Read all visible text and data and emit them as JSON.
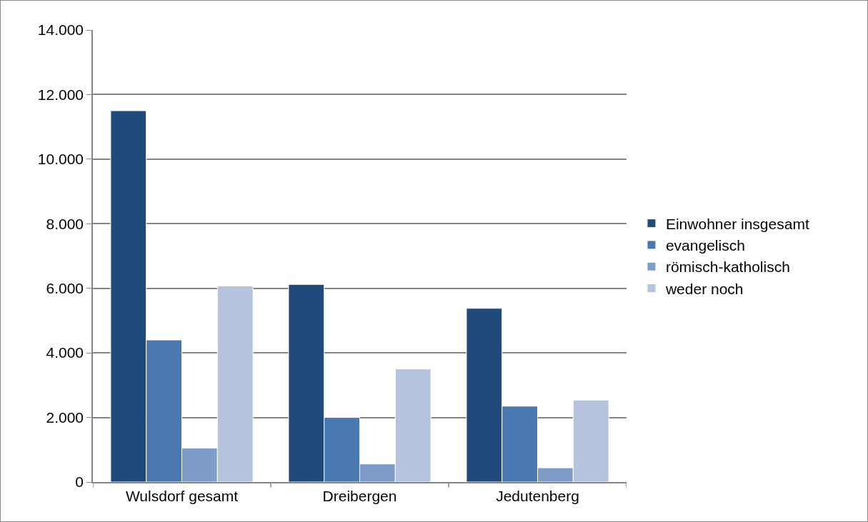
{
  "chart_data": {
    "type": "bar",
    "categories": [
      "Wulsdorf gesamt",
      "Dreibergen",
      "Jedutenberg"
    ],
    "series": [
      {
        "name": "Einwohner insgesamt",
        "color": "#214a7c",
        "values": [
          11500,
          6120,
          5380
        ]
      },
      {
        "name": "evangelisch",
        "color": "#4a78b0",
        "values": [
          4400,
          2000,
          2350
        ]
      },
      {
        "name": "römisch-katholisch",
        "color": "#7e9cc8",
        "values": [
          1050,
          560,
          440
        ]
      },
      {
        "name": "weder noch",
        "color": "#b5c3de",
        "values": [
          6070,
          3500,
          2540
        ]
      }
    ],
    "ylim": [
      0,
      14000
    ],
    "yticks": [
      {
        "value": 0,
        "label": "0"
      },
      {
        "value": 2000,
        "label": "2.000"
      },
      {
        "value": 4000,
        "label": "4.000"
      },
      {
        "value": 6000,
        "label": "6.000"
      },
      {
        "value": 8000,
        "label": "8.000"
      },
      {
        "value": 10000,
        "label": "10.000"
      },
      {
        "value": 12000,
        "label": "12.000"
      },
      {
        "value": 14000,
        "label": "14.000"
      }
    ],
    "grid": "y",
    "legend": "right"
  }
}
